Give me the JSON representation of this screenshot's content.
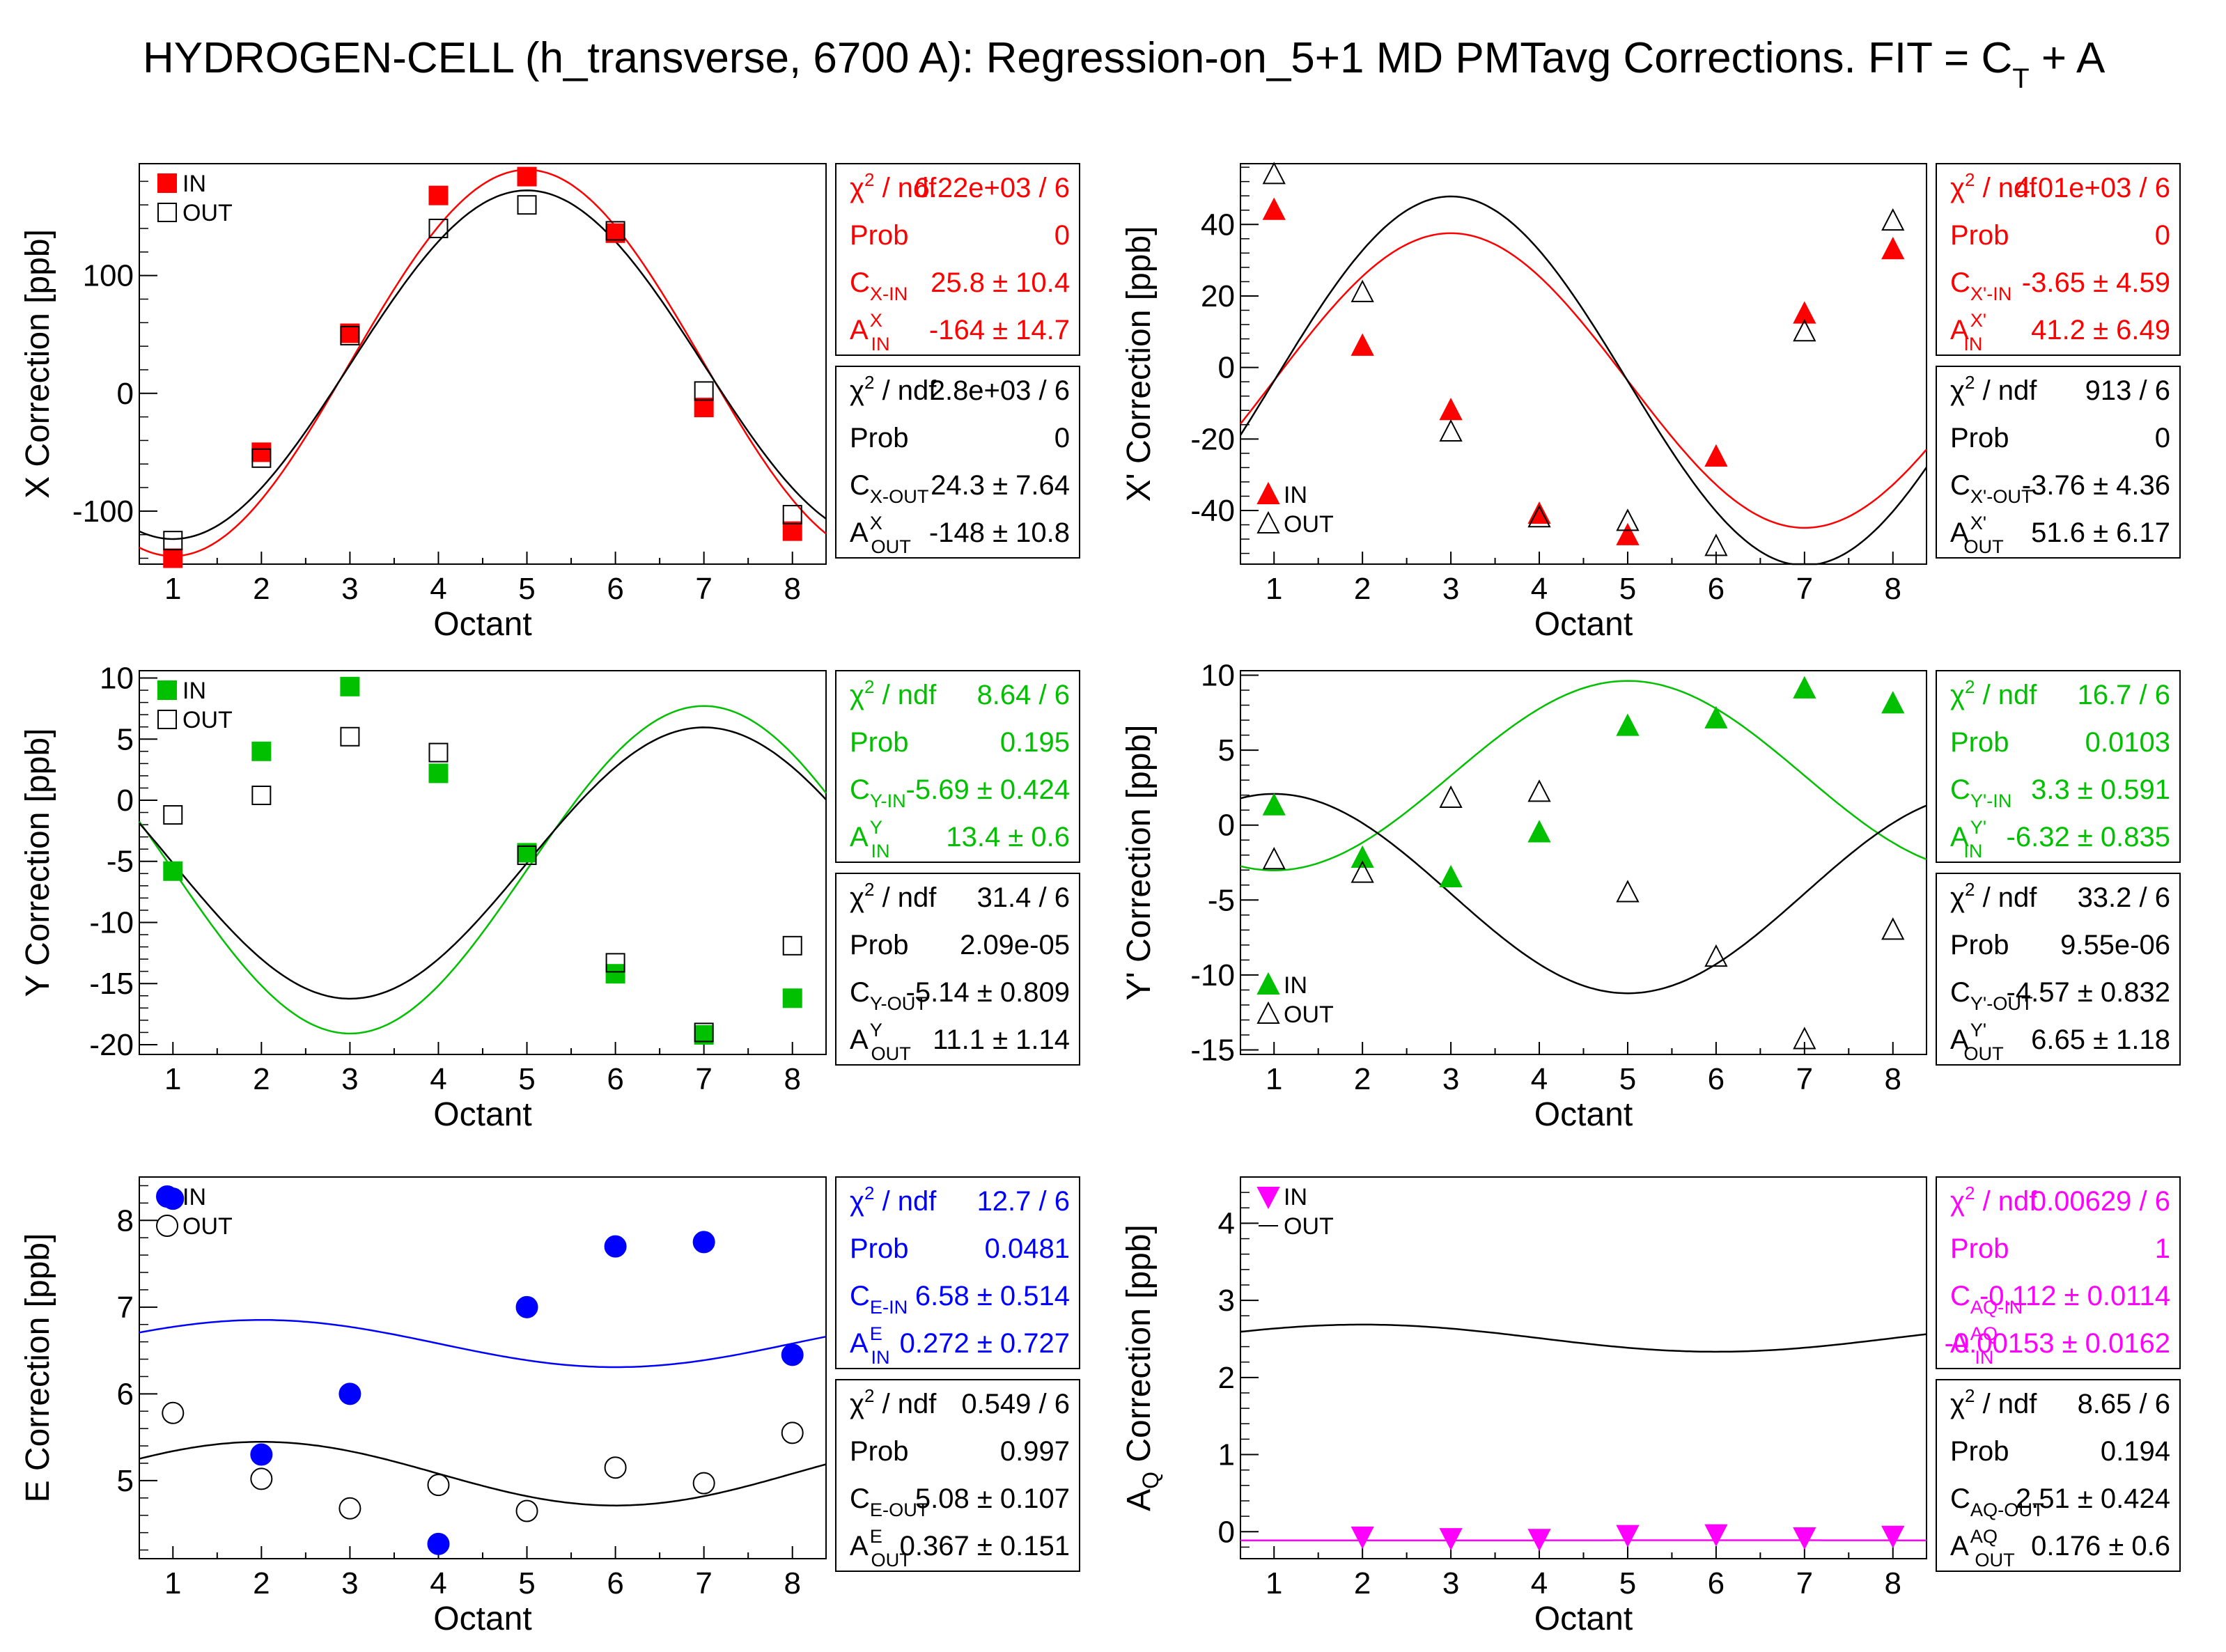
{
  "title": {
    "main": "HYDROGEN-CELL (h_transverse, 6700 A): Regression-on_5+1 MD PMTavg Corrections. FIT = C",
    "sub": "T",
    "tail": " + A"
  },
  "colors": {
    "red": "#ff0000",
    "green": "#00c000",
    "blue": "#0000ff",
    "magenta": "#ff00ff",
    "black": "#000000"
  },
  "chart_data": [
    {
      "type": "scatter",
      "id": "X",
      "xlabel": "Octant",
      "ylabel": "X Correction [ppb]",
      "ylim": [
        -145,
        195
      ],
      "yticks": [
        -100,
        0,
        100
      ],
      "x": [
        1,
        2,
        3,
        4,
        5,
        6,
        7,
        8
      ],
      "series": [
        {
          "name": "IN",
          "color": "#ff0000",
          "marker": "square",
          "values": [
            -140,
            -50,
            51,
            168,
            184,
            136,
            -12,
            -117
          ],
          "fit": {
            "C": 25.8,
            "A": -164
          }
        },
        {
          "name": "OUT",
          "color": "#000000",
          "marker": "open-square",
          "values": [
            -125,
            -55,
            49,
            140,
            160,
            138,
            2,
            -103
          ],
          "fit": {
            "C": 24.3,
            "A": -148
          }
        }
      ],
      "stats": [
        {
          "color": "#ff0000",
          "rows": [
            {
              "label": "χ² / ndf",
              "value": "6.22e+03 / 6"
            },
            {
              "label": "Prob",
              "value": "0"
            },
            {
              "label": "C_X-IN",
              "value": "25.8 ±  10.4"
            },
            {
              "label": "A^X_IN",
              "value": "-164 ±  14.7"
            }
          ]
        },
        {
          "color": "#000000",
          "rows": [
            {
              "label": "χ² / ndf",
              "value": "2.8e+03 / 6"
            },
            {
              "label": "Prob",
              "value": "0"
            },
            {
              "label": "C_X-OUT",
              "value": "24.3 ±  7.64"
            },
            {
              "label": "A^X_OUT",
              "value": "-148 ±  10.8"
            }
          ]
        }
      ]
    },
    {
      "type": "scatter",
      "id": "Xp",
      "xlabel": "Octant",
      "ylabel": "X' Correction [ppb]",
      "ylim": [
        -55,
        57
      ],
      "yticks": [
        -40,
        -20,
        0,
        20,
        40
      ],
      "x": [
        1,
        2,
        3,
        4,
        5,
        6,
        7,
        8
      ],
      "series": [
        {
          "name": "IN",
          "color": "#ff0000",
          "marker": "triangle",
          "values": [
            44,
            6,
            -12,
            -41,
            -47,
            -25,
            15,
            33
          ],
          "fit": {
            "C": -3.65,
            "A": 41.2
          }
        },
        {
          "name": "OUT",
          "color": "#000000",
          "marker": "open-triangle",
          "values": [
            54,
            21,
            -18,
            -42,
            -43,
            -50,
            10,
            41
          ],
          "fit": {
            "C": -3.76,
            "A": 51.6
          }
        }
      ],
      "stats": [
        {
          "color": "#ff0000",
          "rows": [
            {
              "label": "χ² / ndf",
              "value": "4.01e+03 / 6"
            },
            {
              "label": "Prob",
              "value": "0"
            },
            {
              "label": "C_X'-IN",
              "value": "-3.65 ±  4.59"
            },
            {
              "label": "A^X'_IN",
              "value": "41.2 ±  6.49"
            }
          ]
        },
        {
          "color": "#000000",
          "rows": [
            {
              "label": "χ² / ndf",
              "value": "913 / 6"
            },
            {
              "label": "Prob",
              "value": "0"
            },
            {
              "label": "C_X'-OUT",
              "value": "-3.76 ±  4.36"
            },
            {
              "label": "A^X'_OUT",
              "value": "51.6 ±  6.17"
            }
          ]
        }
      ]
    },
    {
      "type": "scatter",
      "id": "Y",
      "xlabel": "Octant",
      "ylabel": "Y Correction [ppb]",
      "ylim": [
        -20.8,
        10.6
      ],
      "yticks": [
        -20,
        -15,
        -10,
        -5,
        0,
        5,
        10
      ],
      "x": [
        1,
        2,
        3,
        4,
        5,
        6,
        7,
        8
      ],
      "series": [
        {
          "name": "IN",
          "color": "#00c000",
          "marker": "square",
          "values": [
            -5.8,
            4.0,
            9.3,
            2.2,
            -4.3,
            -14.2,
            -19.2,
            -16.2
          ],
          "fit": {
            "C": -5.69,
            "A": 13.4
          }
        },
        {
          "name": "OUT",
          "color": "#000000",
          "marker": "open-square",
          "values": [
            -1.2,
            0.4,
            5.2,
            3.9,
            -4.5,
            -13.3,
            -19.0,
            -11.9
          ],
          "fit": {
            "C": -5.14,
            "A": 11.1
          }
        }
      ],
      "stats": [
        {
          "color": "#00c000",
          "rows": [
            {
              "label": "χ² / ndf",
              "value": "8.64 / 6"
            },
            {
              "label": "Prob",
              "value": "0.195"
            },
            {
              "label": "C_Y-IN",
              "value": "-5.69 ± 0.424"
            },
            {
              "label": "A^Y_IN",
              "value": "13.4 ±   0.6"
            }
          ]
        },
        {
          "color": "#000000",
          "rows": [
            {
              "label": "χ² / ndf",
              "value": "31.4 / 6"
            },
            {
              "label": "Prob",
              "value": "2.09e-05"
            },
            {
              "label": "C_Y-OUT",
              "value": "-5.14 ± 0.809"
            },
            {
              "label": "A^Y_OUT",
              "value": "11.1 ±  1.14"
            }
          ]
        }
      ]
    },
    {
      "type": "scatter",
      "id": "Yp",
      "xlabel": "Octant",
      "ylabel": "Y' Correction [ppb]",
      "ylim": [
        -15.3,
        10.3
      ],
      "yticks": [
        -15,
        -10,
        -5,
        0,
        5,
        10
      ],
      "x": [
        1,
        2,
        3,
        4,
        5,
        6,
        7,
        8
      ],
      "series": [
        {
          "name": "IN",
          "color": "#00c000",
          "marker": "triangle",
          "values": [
            1.3,
            -2.2,
            -3.5,
            -0.5,
            6.6,
            7.1,
            9.1,
            8.1
          ],
          "fit": {
            "C": 3.3,
            "A": -6.32
          }
        },
        {
          "name": "OUT",
          "color": "#000000",
          "marker": "open-triangle",
          "values": [
            -2.3,
            -3.2,
            1.8,
            2.2,
            -4.5,
            -8.8,
            -14.3,
            -7.0
          ],
          "fit": {
            "C": -4.57,
            "A": 6.65
          }
        }
      ],
      "stats": [
        {
          "color": "#00c000",
          "rows": [
            {
              "label": "χ² / ndf",
              "value": "16.7 / 6"
            },
            {
              "label": "Prob",
              "value": "0.0103"
            },
            {
              "label": "C_Y'-IN",
              "value": "3.3 ± 0.591"
            },
            {
              "label": "A^Y'_IN",
              "value": "-6.32 ± 0.835"
            }
          ]
        },
        {
          "color": "#000000",
          "rows": [
            {
              "label": "χ² / ndf",
              "value": "33.2 / 6"
            },
            {
              "label": "Prob",
              "value": "9.55e-06"
            },
            {
              "label": "C_Y'-OUT",
              "value": "-4.57 ± 0.832"
            },
            {
              "label": "A^Y'_OUT",
              "value": "6.65 ±  1.18"
            }
          ]
        }
      ]
    },
    {
      "type": "scatter",
      "id": "E",
      "xlabel": "Octant",
      "ylabel": "E Correction [ppb]",
      "ylim": [
        4.1,
        8.5
      ],
      "yticks": [
        5,
        6,
        7,
        8
      ],
      "x": [
        1,
        2,
        3,
        4,
        5,
        6,
        7,
        8
      ],
      "series": [
        {
          "name": "IN",
          "color": "#0000ff",
          "marker": "circle",
          "values": [
            8.25,
            5.3,
            6.0,
            4.27,
            7.0,
            7.7,
            7.75,
            6.45
          ],
          "fit": {
            "C": 6.58,
            "A": 0.272
          }
        },
        {
          "name": "OUT",
          "color": "#000000",
          "marker": "open-circle",
          "values": [
            5.78,
            5.02,
            4.68,
            4.95,
            4.65,
            5.15,
            4.97,
            5.55
          ],
          "fit": {
            "C": 5.08,
            "A": 0.367
          }
        }
      ],
      "stats": [
        {
          "color": "#0000ff",
          "rows": [
            {
              "label": "χ² / ndf",
              "value": "12.7 / 6"
            },
            {
              "label": "Prob",
              "value": "0.0481"
            },
            {
              "label": "C_E-IN",
              "value": "6.58 ± 0.514"
            },
            {
              "label": "A^E_IN",
              "value": "0.272 ± 0.727"
            }
          ]
        },
        {
          "color": "#000000",
          "rows": [
            {
              "label": "χ² / ndf",
              "value": "0.549 / 6"
            },
            {
              "label": "Prob",
              "value": "0.997"
            },
            {
              "label": "C_E-OUT",
              "value": "5.08 ± 0.107"
            },
            {
              "label": "A^E_OUT",
              "value": "0.367 ± 0.151"
            }
          ]
        }
      ]
    },
    {
      "type": "scatter",
      "id": "AQ",
      "xlabel": "Octant",
      "ylabel": "A_Q Correction [ppb]",
      "ylim": [
        -0.35,
        4.6
      ],
      "yticks": [
        0,
        1,
        2,
        3,
        4
      ],
      "x": [
        1,
        2,
        3,
        4,
        5,
        6,
        7,
        8
      ],
      "series": [
        {
          "name": "IN",
          "color": "#ff00ff",
          "marker": "down-triangle",
          "values": [
            4.3,
            -0.06,
            -0.08,
            -0.09,
            -0.04,
            -0.03,
            -0.07,
            -0.05
          ],
          "fit": {
            "C": -0.112,
            "A": -0.00153
          }
        },
        {
          "name": "OUT",
          "color": "#000000",
          "marker": "none",
          "values": [],
          "fit": {
            "C": 2.51,
            "A": 0.176
          }
        }
      ],
      "stats": [
        {
          "color": "#ff00ff",
          "rows": [
            {
              "label": "χ² / ndf",
              "value": "0.00629 / 6"
            },
            {
              "label": "Prob",
              "value": "1"
            },
            {
              "label": "C_AQ-IN",
              "value": "-0.112 ± 0.0114"
            },
            {
              "label": "A^AQ_IN",
              "value": "-0.00153 ± 0.0162"
            }
          ]
        },
        {
          "color": "#000000",
          "rows": [
            {
              "label": "χ² / ndf",
              "value": "8.65 / 6"
            },
            {
              "label": "Prob",
              "value": "0.194"
            },
            {
              "label": "C_AQ-OUT",
              "value": "2.51 ± 0.424"
            },
            {
              "label": "A^AQ_OUT",
              "value": "0.176 ±   0.6"
            }
          ]
        }
      ]
    }
  ]
}
